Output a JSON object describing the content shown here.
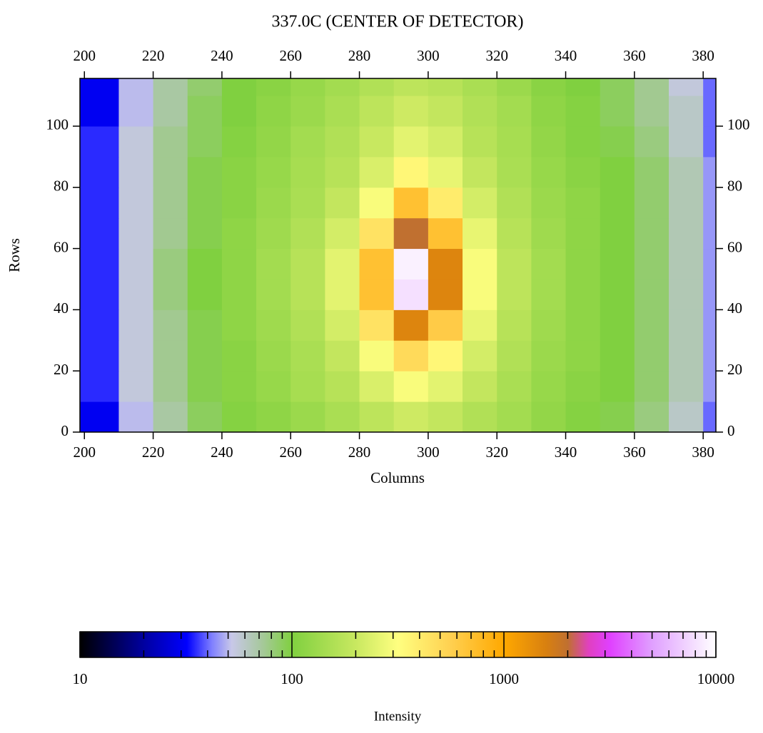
{
  "chart_data": {
    "type": "heatmap",
    "title": "337.0C (CENTER OF DETECTOR)",
    "xlabel": "Columns",
    "ylabel": "Rows",
    "xlim": [
      198.7,
      383.7
    ],
    "ylim": [
      0,
      115.6
    ],
    "xticks": [
      200,
      220,
      240,
      260,
      280,
      300,
      320,
      340,
      360,
      380
    ],
    "yticks": [
      0,
      20,
      40,
      60,
      80,
      100
    ],
    "x_edges": [
      198.7,
      210,
      220,
      230,
      240,
      250,
      260,
      270,
      280,
      290,
      300,
      310,
      320,
      330,
      340,
      350,
      360,
      370,
      380,
      383.7
    ],
    "y_edges": [
      0,
      10,
      20,
      30,
      40,
      50,
      60,
      70,
      80,
      90,
      100,
      110,
      115.6
    ],
    "z": [
      [
        30,
        50,
        70,
        90,
        105,
        115,
        130,
        150,
        180,
        210,
        190,
        160,
        140,
        120,
        105,
        95,
        80,
        60,
        40
      ],
      [
        35,
        55,
        75,
        95,
        110,
        125,
        145,
        170,
        230,
        300,
        250,
        190,
        150,
        125,
        110,
        100,
        85,
        65,
        45
      ],
      [
        35,
        55,
        75,
        95,
        110,
        130,
        150,
        190,
        300,
        500,
        350,
        220,
        160,
        130,
        115,
        100,
        85,
        65,
        45
      ],
      [
        35,
        55,
        75,
        95,
        115,
        135,
        160,
        220,
        450,
        1500,
        600,
        260,
        170,
        135,
        115,
        100,
        85,
        65,
        45
      ],
      [
        35,
        55,
        80,
        100,
        115,
        140,
        170,
        250,
        700,
        8000,
        1500,
        300,
        180,
        140,
        115,
        100,
        85,
        65,
        45
      ],
      [
        35,
        55,
        80,
        100,
        115,
        140,
        170,
        250,
        700,
        9000,
        1500,
        300,
        180,
        140,
        115,
        100,
        85,
        65,
        45
      ],
      [
        35,
        55,
        75,
        95,
        115,
        135,
        160,
        220,
        450,
        2000,
        700,
        260,
        170,
        135,
        115,
        100,
        85,
        65,
        45
      ],
      [
        35,
        55,
        75,
        95,
        110,
        130,
        150,
        190,
        300,
        700,
        400,
        220,
        160,
        130,
        115,
        100,
        85,
        65,
        45
      ],
      [
        35,
        55,
        75,
        95,
        110,
        125,
        145,
        170,
        230,
        350,
        260,
        190,
        150,
        125,
        110,
        100,
        85,
        65,
        45
      ],
      [
        35,
        55,
        75,
        90,
        105,
        120,
        140,
        160,
        200,
        250,
        220,
        170,
        145,
        120,
        105,
        95,
        80,
        60,
        40
      ],
      [
        30,
        50,
        70,
        90,
        100,
        115,
        130,
        150,
        180,
        210,
        190,
        160,
        140,
        115,
        105,
        90,
        75,
        60,
        40
      ],
      [
        30,
        50,
        70,
        85,
        100,
        110,
        125,
        140,
        160,
        180,
        170,
        150,
        130,
        110,
        100,
        90,
        75,
        55,
        40
      ]
    ],
    "colorbar": {
      "label": "Intensity",
      "lim": [
        10,
        10000
      ],
      "log": true,
      "ticks": [
        10,
        100,
        1000,
        10000
      ],
      "minor_ticks": [
        20,
        30,
        40,
        50,
        60,
        70,
        80,
        90,
        200,
        300,
        400,
        500,
        600,
        700,
        800,
        900,
        2000,
        3000,
        4000,
        5000,
        6000,
        7000,
        8000,
        9000
      ],
      "colorscale": [
        {
          "value": 10,
          "color": "#000000"
        },
        {
          "value": 20,
          "color": "#0000a0"
        },
        {
          "value": 32,
          "color": "#0000ff"
        },
        {
          "value": 42,
          "color": "#8080ff"
        },
        {
          "value": 52,
          "color": "#c8c8e8"
        },
        {
          "value": 71,
          "color": "#a8c8a0"
        },
        {
          "value": 100,
          "color": "#80d040"
        },
        {
          "value": 200,
          "color": "#c8e860"
        },
        {
          "value": 316,
          "color": "#ffff80"
        },
        {
          "value": 562,
          "color": "#ffd050"
        },
        {
          "value": 1000,
          "color": "#ffa800"
        },
        {
          "value": 1585,
          "color": "#d88010"
        },
        {
          "value": 2000,
          "color": "#c07030"
        },
        {
          "value": 2512,
          "color": "#e040c0"
        },
        {
          "value": 3162,
          "color": "#e040ff"
        },
        {
          "value": 5012,
          "color": "#e0a0ff"
        },
        {
          "value": 10000,
          "color": "#ffffff"
        }
      ]
    }
  }
}
